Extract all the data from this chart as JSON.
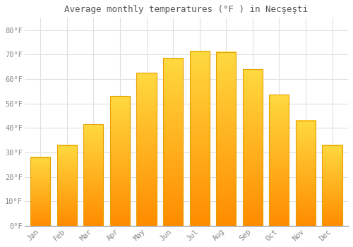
{
  "title": "Average monthly temperatures (°F ) in Necşeşti",
  "months": [
    "Jan",
    "Feb",
    "Mar",
    "Apr",
    "May",
    "Jun",
    "Jul",
    "Aug",
    "Sep",
    "Oct",
    "Nov",
    "Dec"
  ],
  "values": [
    28,
    33,
    41.5,
    53,
    62.5,
    68.5,
    71.5,
    71,
    64,
    53.5,
    43,
    33
  ],
  "bar_color_top": "#FFB300",
  "bar_color_bottom": "#FF8C00",
  "bar_color_mid": "#FFC837",
  "background_color": "#FFFFFF",
  "grid_color": "#E0E0E0",
  "tick_color": "#888888",
  "text_color": "#555555",
  "ylim": [
    0,
    85
  ],
  "yticks": [
    0,
    10,
    20,
    30,
    40,
    50,
    60,
    70,
    80
  ],
  "ytick_labels": [
    "0°F",
    "10°F",
    "20°F",
    "30°F",
    "40°F",
    "50°F",
    "60°F",
    "70°F",
    "80°F"
  ],
  "bar_width": 0.75,
  "figsize": [
    5.0,
    3.5
  ],
  "dpi": 100
}
